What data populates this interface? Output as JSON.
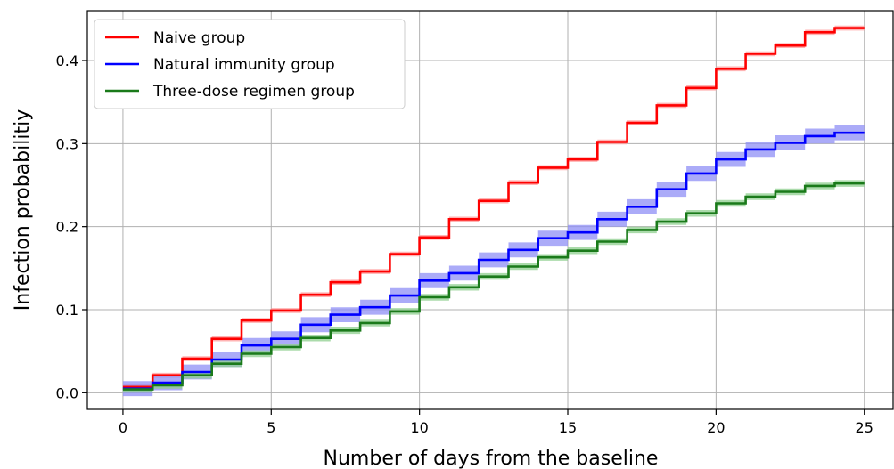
{
  "chart_data": {
    "type": "line",
    "step": true,
    "xlabel": "Number of days from the baseline",
    "ylabel": "Infection probabilitiy",
    "xlim": [
      -1.2,
      26
    ],
    "ylim": [
      -0.02,
      0.46
    ],
    "xticks": [
      0,
      5,
      10,
      15,
      20,
      25
    ],
    "xtick_labels": [
      "0",
      "5",
      "10",
      "15",
      "20",
      "25"
    ],
    "yticks": [
      0.0,
      0.1,
      0.2,
      0.3,
      0.4
    ],
    "ytick_labels": [
      "0.0",
      "0.1",
      "0.2",
      "0.3",
      "0.4"
    ],
    "grid": true,
    "legend_position": "top-left",
    "x": [
      0,
      1,
      2,
      3,
      4,
      5,
      6,
      7,
      8,
      9,
      10,
      11,
      12,
      13,
      14,
      15,
      16,
      17,
      18,
      19,
      20,
      21,
      22,
      23,
      24,
      25
    ],
    "series": [
      {
        "name": "Naive group",
        "color": "#ff0000",
        "band_color": "#ff9999",
        "band_halfwidth": 0.003,
        "values": [
          0.007,
          0.021,
          0.041,
          0.065,
          0.087,
          0.099,
          0.118,
          0.133,
          0.146,
          0.167,
          0.187,
          0.209,
          0.231,
          0.253,
          0.271,
          0.281,
          0.302,
          0.325,
          0.346,
          0.367,
          0.39,
          0.408,
          0.418,
          0.434,
          0.439,
          0.439
        ]
      },
      {
        "name": "Natural immunity group",
        "color": "#0000ff",
        "band_color": "#8f8ff5",
        "band_halfwidth": 0.009,
        "values": [
          0.005,
          0.012,
          0.025,
          0.04,
          0.057,
          0.065,
          0.082,
          0.094,
          0.103,
          0.117,
          0.135,
          0.144,
          0.16,
          0.172,
          0.186,
          0.193,
          0.209,
          0.224,
          0.245,
          0.264,
          0.281,
          0.293,
          0.301,
          0.309,
          0.313,
          0.313
        ]
      },
      {
        "name": "Three-dose regimen group",
        "color": "#1a7a1a",
        "band_color": "#8fcf8f",
        "band_halfwidth": 0.004,
        "values": [
          0.004,
          0.009,
          0.021,
          0.035,
          0.047,
          0.055,
          0.066,
          0.075,
          0.084,
          0.098,
          0.115,
          0.127,
          0.14,
          0.152,
          0.163,
          0.171,
          0.182,
          0.196,
          0.206,
          0.216,
          0.228,
          0.236,
          0.242,
          0.249,
          0.252,
          0.252
        ]
      }
    ]
  }
}
